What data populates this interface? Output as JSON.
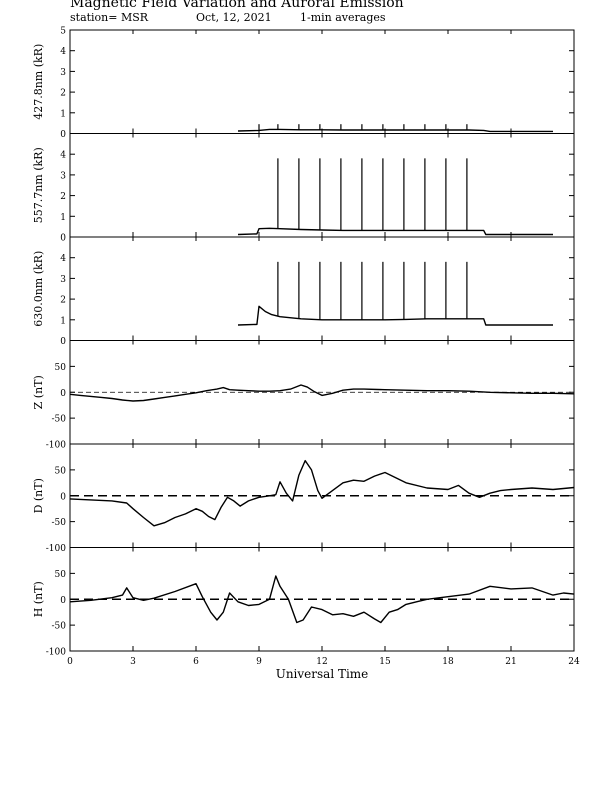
{
  "header": {
    "title": "Magnetic Field Variation and Auroral Emission",
    "station": "station= MSR",
    "date": "Oct, 12, 2021",
    "averaging": "1-min averages"
  },
  "chart_data": {
    "type": "line",
    "xlabel": "Universal Time",
    "xlim": [
      0,
      24
    ],
    "xticks": [
      0,
      3,
      6,
      9,
      12,
      15,
      18,
      21,
      24
    ],
    "panels": [
      {
        "ylabel": "427.8nm (kR)",
        "ylim": [
          0,
          5
        ],
        "yticks": [
          0,
          1,
          2,
          3,
          4,
          5
        ],
        "zero_line": false,
        "x": [
          8.0,
          9.0,
          9.5,
          10.0,
          11.0,
          12.0,
          13.0,
          14.0,
          15.0,
          16.0,
          17.0,
          18.0,
          19.0,
          19.7,
          20.0,
          21.0,
          22.0,
          23.0
        ],
        "y": [
          0.12,
          0.15,
          0.2,
          0.2,
          0.18,
          0.18,
          0.17,
          0.17,
          0.17,
          0.17,
          0.17,
          0.17,
          0.17,
          0.15,
          0.1,
          0.1,
          0.1,
          0.1
        ],
        "spikes": {
          "x": [
            9.0,
            9.9,
            10.9,
            11.9,
            12.9,
            13.9,
            14.9,
            15.9,
            16.9,
            17.9,
            18.9
          ],
          "y": 0.45
        }
      },
      {
        "ylabel": "557.7nm (kR)",
        "ylim": [
          0,
          5
        ],
        "yticks": [
          0,
          1,
          2,
          3,
          4
        ],
        "zero_line": false,
        "x": [
          8.0,
          8.9,
          9.0,
          9.5,
          10.0,
          11.0,
          12.0,
          13.0,
          14.0,
          15.0,
          16.0,
          17.0,
          18.0,
          19.0,
          19.7,
          19.8,
          21.0,
          22.0,
          23.0
        ],
        "y": [
          0.12,
          0.15,
          0.4,
          0.42,
          0.4,
          0.36,
          0.34,
          0.32,
          0.32,
          0.32,
          0.32,
          0.32,
          0.32,
          0.32,
          0.32,
          0.12,
          0.12,
          0.12,
          0.12
        ],
        "spikes": {
          "x": [
            9.9,
            10.9,
            11.9,
            12.9,
            13.9,
            14.9,
            15.9,
            16.9,
            17.9,
            18.9
          ],
          "y": 3.8
        }
      },
      {
        "ylabel": "630.0nm (kR)",
        "ylim": [
          0,
          5
        ],
        "yticks": [
          0,
          1,
          2,
          3,
          4
        ],
        "zero_line": false,
        "x": [
          8.0,
          8.9,
          9.0,
          9.3,
          9.6,
          10.0,
          11.0,
          12.0,
          13.0,
          14.0,
          15.0,
          16.0,
          17.0,
          18.0,
          19.0,
          19.7,
          19.8,
          21.0,
          22.0,
          23.0
        ],
        "y": [
          0.75,
          0.78,
          1.65,
          1.4,
          1.25,
          1.15,
          1.05,
          1.0,
          1.0,
          1.0,
          1.0,
          1.02,
          1.05,
          1.05,
          1.05,
          1.05,
          0.75,
          0.75,
          0.75,
          0.75
        ],
        "spikes": {
          "x": [
            9.9,
            10.9,
            11.9,
            12.9,
            13.9,
            14.9,
            15.9,
            16.9,
            17.9,
            18.9
          ],
          "y": 3.8
        }
      },
      {
        "ylabel": "Z (nT)",
        "ylim": [
          -100,
          100
        ],
        "yticks": [
          -100,
          -50,
          0,
          50
        ],
        "zero_line": true,
        "x": [
          0,
          0.5,
          1.0,
          1.5,
          2.0,
          2.5,
          3.0,
          3.5,
          4.0,
          4.5,
          5.0,
          5.5,
          6.0,
          6.5,
          7.0,
          7.3,
          7.6,
          8.0,
          8.5,
          9.0,
          9.5,
          10.0,
          10.5,
          11.0,
          11.3,
          11.6,
          12.0,
          12.5,
          13.0,
          13.5,
          14.0,
          15.0,
          16.0,
          17.0,
          18.0,
          19.0,
          20.0,
          21.0,
          22.0,
          23.0,
          24.0
        ],
        "y": [
          -4,
          -6,
          -8,
          -10,
          -12,
          -15,
          -17,
          -16,
          -13,
          -10,
          -7,
          -4,
          -1,
          3,
          6,
          9,
          5,
          4,
          3,
          2,
          2,
          3,
          6,
          14,
          10,
          2,
          -6,
          -2,
          4,
          6,
          6,
          5,
          4,
          3,
          3,
          2,
          0,
          -1,
          -2,
          -2,
          -3
        ]
      },
      {
        "ylabel": "D (nT)",
        "ylim": [
          -100,
          100
        ],
        "yticks": [
          -100,
          -50,
          0,
          50
        ],
        "zero_line": true,
        "x": [
          0,
          1.0,
          2.0,
          2.7,
          3.0,
          3.5,
          4.0,
          4.5,
          5.0,
          5.5,
          6.0,
          6.3,
          6.6,
          6.9,
          7.2,
          7.5,
          7.8,
          8.1,
          8.5,
          9.0,
          9.5,
          9.8,
          10.0,
          10.3,
          10.6,
          10.9,
          11.2,
          11.5,
          11.8,
          12.0,
          12.5,
          13.0,
          13.5,
          14.0,
          14.5,
          15.0,
          15.5,
          16.0,
          17.0,
          18.0,
          18.5,
          19.0,
          19.5,
          20.0,
          20.5,
          21.0,
          22.0,
          23.0,
          24.0
        ],
        "y": [
          -6,
          -8,
          -10,
          -14,
          -25,
          -42,
          -58,
          -52,
          -42,
          -35,
          -25,
          -30,
          -40,
          -46,
          -22,
          -3,
          -10,
          -20,
          -10,
          -3,
          0,
          2,
          27,
          5,
          -10,
          40,
          68,
          50,
          10,
          -5,
          10,
          25,
          30,
          28,
          38,
          45,
          35,
          25,
          15,
          12,
          20,
          5,
          -3,
          5,
          10,
          12,
          15,
          12,
          16
        ]
      },
      {
        "ylabel": "H (nT)",
        "ylim": [
          -100,
          100
        ],
        "yticks": [
          -100,
          -50,
          0,
          50
        ],
        "zero_line": true,
        "x": [
          0,
          1.0,
          2.0,
          2.5,
          2.7,
          3.0,
          3.5,
          4.0,
          5.0,
          6.0,
          6.3,
          6.7,
          7.0,
          7.3,
          7.6,
          8.0,
          8.5,
          9.0,
          9.5,
          9.8,
          10.0,
          10.4,
          10.8,
          11.1,
          11.5,
          12.0,
          12.5,
          13.0,
          13.5,
          14.0,
          14.5,
          14.8,
          15.2,
          15.6,
          16.0,
          16.5,
          17.0,
          18.0,
          19.0,
          20.0,
          21.0,
          22.0,
          23.0,
          23.5,
          24.0
        ],
        "y": [
          -5,
          -2,
          3,
          8,
          22,
          3,
          -2,
          2,
          15,
          30,
          5,
          -25,
          -40,
          -25,
          12,
          -5,
          -12,
          -10,
          0,
          45,
          25,
          0,
          -45,
          -40,
          -15,
          -20,
          -30,
          -28,
          -33,
          -25,
          -38,
          -45,
          -25,
          -20,
          -10,
          -5,
          0,
          5,
          10,
          25,
          20,
          22,
          8,
          12,
          10
        ]
      }
    ]
  }
}
